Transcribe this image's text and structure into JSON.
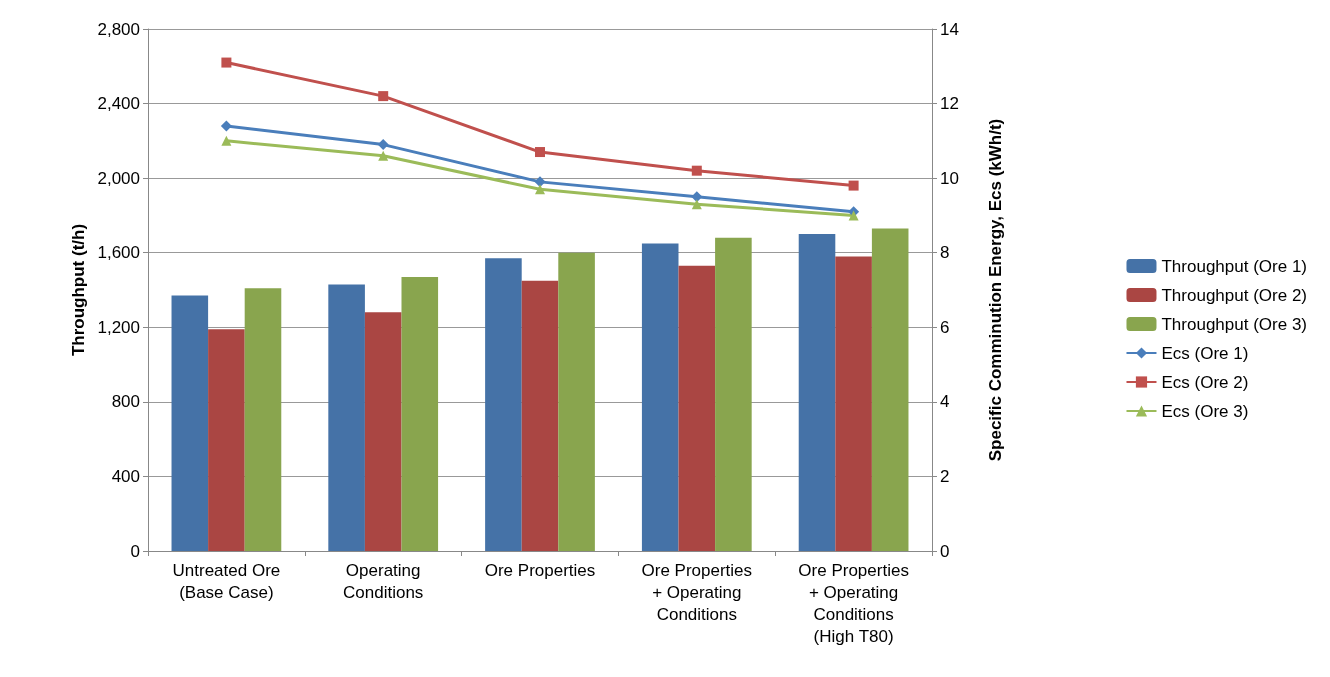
{
  "chart_data": {
    "type": "bar",
    "ylabel": "Throughput (t/h)",
    "y2label": "Specific Comminution Energy, Ecs (kWh/t)",
    "categories": [
      "Untreated Ore\n(Base Case)",
      "Operating\nConditions",
      "Ore Properties",
      "Ore Properties\n+ Operating\nConditions",
      "Ore Properties\n+ Operating\nConditions\n(High T80)"
    ],
    "series": [
      {
        "name": "Throughput (Ore 1)",
        "color": "#4572a7",
        "values": [
          1370,
          1430,
          1570,
          1650,
          1700
        ]
      },
      {
        "name": "Throughput (Ore 2)",
        "color": "#aa4643",
        "values": [
          1190,
          1280,
          1450,
          1530,
          1580
        ]
      },
      {
        "name": "Throughput (Ore 3)",
        "color": "#89a54e",
        "values": [
          1410,
          1470,
          1600,
          1680,
          1730
        ]
      },
      {
        "name": "Ecs (Ore 1)",
        "type": "line",
        "axis": "y2",
        "marker": "diamond",
        "color": "#4a7ebb",
        "values": [
          11.4,
          10.9,
          9.9,
          9.5,
          9.1
        ]
      },
      {
        "name": "Ecs (Ore 2)",
        "type": "line",
        "axis": "y2",
        "marker": "square",
        "color": "#c0504d",
        "values": [
          13.1,
          12.2,
          10.7,
          10.2,
          9.8
        ]
      },
      {
        "name": "Ecs (Ore 3)",
        "type": "line",
        "axis": "y2",
        "marker": "triangle",
        "color": "#9bbb59",
        "values": [
          11.0,
          10.6,
          9.7,
          9.3,
          9.0
        ]
      }
    ],
    "ylim": [
      0,
      2800
    ],
    "yticks": [
      0,
      400,
      800,
      {
        "value": 1200,
        "label": "1,200"
      },
      {
        "value": 1600,
        "label": "1,600"
      },
      {
        "value": 2000,
        "label": "2,000"
      },
      {
        "value": 2400,
        "label": "2,400"
      },
      {
        "value": 2800,
        "label": "2,800"
      }
    ],
    "y2lim": [
      0,
      14
    ],
    "y2ticks": [
      0,
      2,
      4,
      6,
      8,
      10,
      12,
      14
    ],
    "grid": "y",
    "legend": "right"
  }
}
